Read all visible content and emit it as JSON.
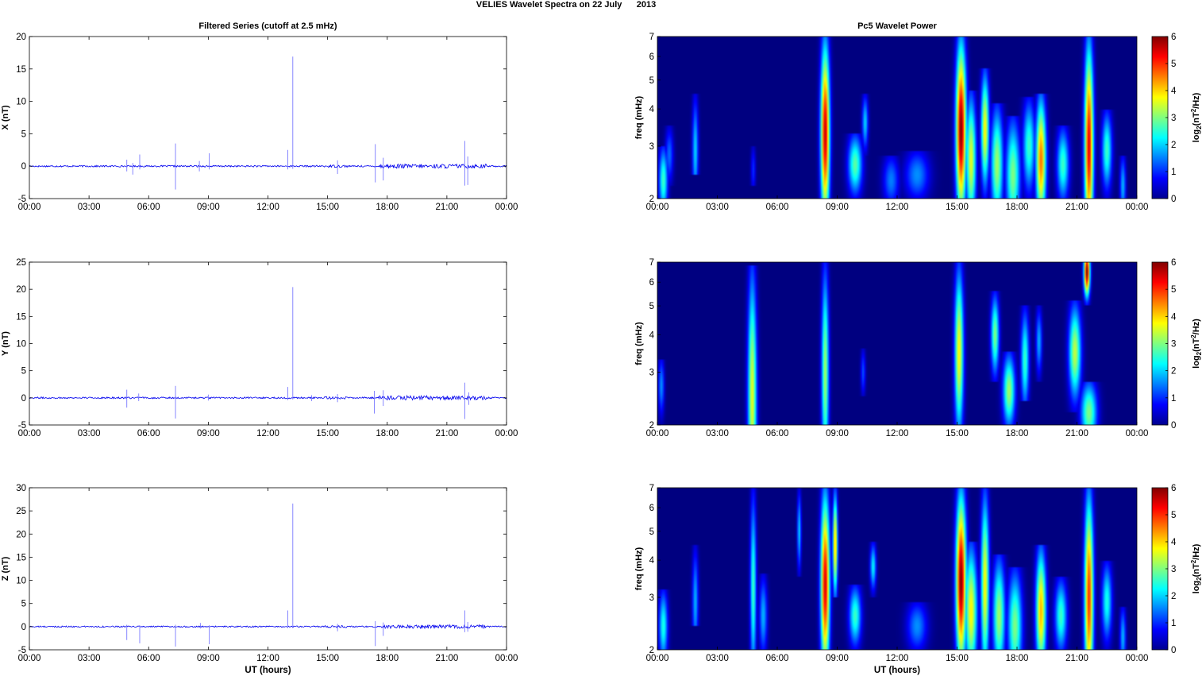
{
  "figure": {
    "title": "VELIES Wavelet Spectra on 22 July      2013",
    "colors": {
      "trace": "#0000ee",
      "background": "#ffffff",
      "axis": "#000000",
      "spectrum_floor": "#00008f"
    }
  },
  "chart_data": [
    {
      "id": "x-series",
      "type": "line",
      "title": "Filtered Series (cutoff at 2.5 mHz)",
      "xlabel": "",
      "ylabel": "X (nT)",
      "xlim": [
        0,
        24
      ],
      "ylim": [
        -5,
        20
      ],
      "xticks": [
        "00:00",
        "03:00",
        "06:00",
        "09:00",
        "12:00",
        "15:00",
        "18:00",
        "21:00",
        "00:00"
      ],
      "yticks": [
        "-5",
        "0",
        "5",
        "10",
        "15",
        "20"
      ],
      "baseline_noise_nT": 0.25,
      "spikes": [
        {
          "t": 4.9,
          "lo": -0.8,
          "hi": 1.0
        },
        {
          "t": 5.2,
          "lo": -1.3,
          "hi": 0.5
        },
        {
          "t": 5.55,
          "lo": -0.5,
          "hi": 1.8
        },
        {
          "t": 7.35,
          "lo": -3.6,
          "hi": 3.5
        },
        {
          "t": 8.55,
          "lo": -0.8,
          "hi": 0.8
        },
        {
          "t": 9.05,
          "lo": -0.5,
          "hi": 2.0
        },
        {
          "t": 13.0,
          "lo": -0.5,
          "hi": 2.5
        },
        {
          "t": 13.25,
          "lo": -0.4,
          "hi": 16.9
        },
        {
          "t": 15.5,
          "lo": -1.2,
          "hi": 0.9
        },
        {
          "t": 17.4,
          "lo": -2.5,
          "hi": 3.4
        },
        {
          "t": 17.8,
          "lo": -2.2,
          "hi": 1.3
        },
        {
          "t": 21.9,
          "lo": -3.0,
          "hi": 3.9
        },
        {
          "t": 22.05,
          "lo": -2.9,
          "hi": 1.5
        }
      ]
    },
    {
      "id": "y-series",
      "type": "line",
      "title": "",
      "xlabel": "",
      "ylabel": "Y (nT)",
      "xlim": [
        0,
        24
      ],
      "ylim": [
        -5,
        25
      ],
      "xticks": [
        "00:00",
        "03:00",
        "06:00",
        "09:00",
        "12:00",
        "15:00",
        "18:00",
        "21:00",
        "00:00"
      ],
      "yticks": [
        "-5",
        "0",
        "5",
        "10",
        "15",
        "20",
        "25"
      ],
      "baseline_noise_nT": 0.3,
      "spikes": [
        {
          "t": 4.9,
          "lo": -1.8,
          "hi": 1.5
        },
        {
          "t": 5.5,
          "lo": -0.6,
          "hi": 0.8
        },
        {
          "t": 7.35,
          "lo": -3.8,
          "hi": 2.2
        },
        {
          "t": 9.0,
          "lo": -0.5,
          "hi": 0.6
        },
        {
          "t": 13.0,
          "lo": -0.4,
          "hi": 2.0
        },
        {
          "t": 13.25,
          "lo": -0.3,
          "hi": 20.4
        },
        {
          "t": 14.2,
          "lo": -0.6,
          "hi": 0.5
        },
        {
          "t": 15.5,
          "lo": -0.8,
          "hi": 0.7
        },
        {
          "t": 17.35,
          "lo": -2.9,
          "hi": 1.3
        },
        {
          "t": 17.8,
          "lo": -1.5,
          "hi": 1.4
        },
        {
          "t": 21.9,
          "lo": -3.9,
          "hi": 2.8
        },
        {
          "t": 22.1,
          "lo": -1.3,
          "hi": 1.0
        }
      ]
    },
    {
      "id": "z-series",
      "type": "line",
      "title": "",
      "xlabel": "UT (hours)",
      "ylabel": "Z (nT)",
      "xlim": [
        0,
        24
      ],
      "ylim": [
        -5,
        30
      ],
      "xticks": [
        "00:00",
        "03:00",
        "06:00",
        "09:00",
        "12:00",
        "15:00",
        "18:00",
        "21:00",
        "00:00"
      ],
      "yticks": [
        "-5",
        "0",
        "5",
        "10",
        "15",
        "20",
        "25",
        "30"
      ],
      "baseline_noise_nT": 0.3,
      "spikes": [
        {
          "t": 4.9,
          "lo": -2.9,
          "hi": 0.4
        },
        {
          "t": 5.55,
          "lo": -3.6,
          "hi": 0.3
        },
        {
          "t": 7.35,
          "lo": -4.3,
          "hi": 0.4
        },
        {
          "t": 8.6,
          "lo": -0.4,
          "hi": 0.8
        },
        {
          "t": 9.05,
          "lo": -3.8,
          "hi": 0.3
        },
        {
          "t": 13.0,
          "lo": -0.3,
          "hi": 3.5
        },
        {
          "t": 13.25,
          "lo": -0.3,
          "hi": 26.6
        },
        {
          "t": 15.5,
          "lo": -1.0,
          "hi": 0.6
        },
        {
          "t": 17.4,
          "lo": -4.2,
          "hi": 1.2
        },
        {
          "t": 17.8,
          "lo": -2.0,
          "hi": 0.9
        },
        {
          "t": 21.9,
          "lo": -1.2,
          "hi": 3.5
        },
        {
          "t": 22.05,
          "lo": -1.1,
          "hi": 1.0
        }
      ]
    },
    {
      "id": "x-wavelet",
      "type": "heatmap",
      "title": "Pc5 Wavelet Power",
      "xlabel": "",
      "ylabel": "freq (mHz)",
      "xlim": [
        0,
        24
      ],
      "ylim": [
        2,
        7
      ],
      "yscale": "log",
      "xticks": [
        "00:00",
        "03:00",
        "06:00",
        "09:00",
        "12:00",
        "15:00",
        "18:00",
        "21:00",
        "00:00"
      ],
      "yticks": [
        "2",
        "3",
        "4",
        "5",
        "6",
        "7"
      ],
      "colorbar": {
        "label": "log",
        "sub": "2",
        "unit": "(nT",
        "sup": "2",
        "unit2": "/Hz)",
        "ticks": [
          "0",
          "1",
          "2",
          "3",
          "4",
          "5",
          "6"
        ],
        "range": [
          0,
          6
        ]
      },
      "blobs": [
        {
          "t": 0.3,
          "f": 2.3,
          "p": 2.6,
          "w": 0.22,
          "fmin": 2.0,
          "fmax": 3.0
        },
        {
          "t": 0.6,
          "f": 2.8,
          "p": 1.4,
          "w": 0.2,
          "fmin": 2.2,
          "fmax": 3.5
        },
        {
          "t": 1.9,
          "f": 2.9,
          "p": 2.0,
          "w": 0.15,
          "fmin": 2.4,
          "fmax": 4.5
        },
        {
          "t": 4.8,
          "f": 2.5,
          "p": 1.0,
          "w": 0.12,
          "fmin": 2.2,
          "fmax": 3.0
        },
        {
          "t": 8.4,
          "f": 3.3,
          "p": 5.6,
          "w": 0.22,
          "fmin": 2.0,
          "fmax": 7.0
        },
        {
          "t": 9.9,
          "f": 2.6,
          "p": 2.8,
          "w": 0.35,
          "fmin": 2.0,
          "fmax": 3.3
        },
        {
          "t": 10.4,
          "f": 3.6,
          "p": 2.0,
          "w": 0.15,
          "fmin": 2.8,
          "fmax": 4.5
        },
        {
          "t": 11.7,
          "f": 2.3,
          "p": 1.5,
          "w": 0.4,
          "fmin": 2.0,
          "fmax": 2.8
        },
        {
          "t": 13.0,
          "f": 2.4,
          "p": 1.6,
          "w": 0.6,
          "fmin": 2.0,
          "fmax": 2.9
        },
        {
          "t": 15.2,
          "f": 3.4,
          "p": 6.0,
          "w": 0.25,
          "fmin": 2.0,
          "fmax": 7.0
        },
        {
          "t": 15.7,
          "f": 2.7,
          "p": 3.6,
          "w": 0.25,
          "fmin": 2.0,
          "fmax": 4.6
        },
        {
          "t": 16.4,
          "f": 3.4,
          "p": 3.8,
          "w": 0.2,
          "fmin": 2.0,
          "fmax": 5.5
        },
        {
          "t": 17.0,
          "f": 2.6,
          "p": 3.2,
          "w": 0.3,
          "fmin": 2.0,
          "fmax": 4.2
        },
        {
          "t": 17.8,
          "f": 2.4,
          "p": 3.0,
          "w": 0.35,
          "fmin": 2.0,
          "fmax": 3.8
        },
        {
          "t": 18.6,
          "f": 3.0,
          "p": 2.6,
          "w": 0.3,
          "fmin": 2.0,
          "fmax": 4.4
        },
        {
          "t": 19.2,
          "f": 2.7,
          "p": 4.6,
          "w": 0.25,
          "fmin": 2.0,
          "fmax": 4.5
        },
        {
          "t": 20.3,
          "f": 2.6,
          "p": 2.6,
          "w": 0.3,
          "fmin": 2.0,
          "fmax": 3.5
        },
        {
          "t": 21.6,
          "f": 3.0,
          "p": 5.4,
          "w": 0.22,
          "fmin": 2.0,
          "fmax": 7.0
        },
        {
          "t": 22.5,
          "f": 2.9,
          "p": 2.6,
          "w": 0.25,
          "fmin": 2.0,
          "fmax": 4.0
        },
        {
          "t": 23.3,
          "f": 2.2,
          "p": 1.8,
          "w": 0.15,
          "fmin": 2.0,
          "fmax": 2.8
        }
      ]
    },
    {
      "id": "y-wavelet",
      "type": "heatmap",
      "title": "",
      "xlabel": "",
      "ylabel": "freq (mHz)",
      "xlim": [
        0,
        24
      ],
      "ylim": [
        2,
        7
      ],
      "yscale": "log",
      "xticks": [
        "00:00",
        "03:00",
        "06:00",
        "09:00",
        "12:00",
        "15:00",
        "18:00",
        "21:00",
        "00:00"
      ],
      "yticks": [
        "2",
        "3",
        "4",
        "5",
        "6",
        "7"
      ],
      "colorbar": {
        "label": "log",
        "sub": "2",
        "unit": "(nT",
        "sup": "2",
        "unit2": "/Hz)",
        "ticks": [
          "0",
          "1",
          "2",
          "3",
          "4",
          "5",
          "6"
        ],
        "range": [
          0,
          6
        ]
      },
      "blobs": [
        {
          "t": 0.2,
          "f": 2.7,
          "p": 1.6,
          "w": 0.15,
          "fmin": 2.0,
          "fmax": 3.3
        },
        {
          "t": 4.75,
          "f": 2.5,
          "p": 3.6,
          "w": 0.22,
          "fmin": 2.0,
          "fmax": 6.8
        },
        {
          "t": 8.4,
          "f": 3.0,
          "p": 3.2,
          "w": 0.18,
          "fmin": 2.0,
          "fmax": 7.0
        },
        {
          "t": 10.3,
          "f": 3.0,
          "p": 1.2,
          "w": 0.12,
          "fmin": 2.5,
          "fmax": 3.6
        },
        {
          "t": 15.1,
          "f": 3.5,
          "p": 3.8,
          "w": 0.22,
          "fmin": 2.0,
          "fmax": 7.0
        },
        {
          "t": 16.9,
          "f": 4.0,
          "p": 3.0,
          "w": 0.2,
          "fmin": 2.8,
          "fmax": 5.6
        },
        {
          "t": 17.6,
          "f": 2.6,
          "p": 3.2,
          "w": 0.3,
          "fmin": 2.0,
          "fmax": 3.5
        },
        {
          "t": 18.4,
          "f": 3.3,
          "p": 2.6,
          "w": 0.2,
          "fmin": 2.4,
          "fmax": 5.0
        },
        {
          "t": 19.1,
          "f": 3.8,
          "p": 1.8,
          "w": 0.15,
          "fmin": 2.8,
          "fmax": 5.0
        },
        {
          "t": 20.9,
          "f": 3.5,
          "p": 3.4,
          "w": 0.3,
          "fmin": 2.2,
          "fmax": 5.2
        },
        {
          "t": 21.6,
          "f": 2.2,
          "p": 3.0,
          "w": 0.4,
          "fmin": 2.0,
          "fmax": 2.8
        },
        {
          "t": 21.5,
          "f": 6.5,
          "p": 6.0,
          "w": 0.15,
          "fmin": 5.0,
          "fmax": 7.0
        }
      ]
    },
    {
      "id": "z-wavelet",
      "type": "heatmap",
      "title": "",
      "xlabel": "UT (hours)",
      "ylabel": "freq (mHz)",
      "xlim": [
        0,
        24
      ],
      "ylim": [
        2,
        7
      ],
      "yscale": "log",
      "xticks": [
        "00:00",
        "03:00",
        "06:00",
        "09:00",
        "12:00",
        "15:00",
        "18:00",
        "21:00",
        "00:00"
      ],
      "yticks": [
        "2",
        "3",
        "4",
        "5",
        "6",
        "7"
      ],
      "colorbar": {
        "label": "log",
        "sub": "2",
        "unit": "(nT",
        "sup": "2",
        "unit2": "/Hz)",
        "ticks": [
          "0",
          "1",
          "2",
          "3",
          "4",
          "5",
          "6"
        ],
        "range": [
          0,
          6
        ]
      },
      "blobs": [
        {
          "t": 0.3,
          "f": 2.4,
          "p": 2.4,
          "w": 0.22,
          "fmin": 2.0,
          "fmax": 3.2
        },
        {
          "t": 1.9,
          "f": 2.9,
          "p": 1.8,
          "w": 0.15,
          "fmin": 2.4,
          "fmax": 4.5
        },
        {
          "t": 4.8,
          "f": 3.2,
          "p": 2.6,
          "w": 0.15,
          "fmin": 2.0,
          "fmax": 7.0
        },
        {
          "t": 5.3,
          "f": 2.6,
          "p": 1.8,
          "w": 0.2,
          "fmin": 2.0,
          "fmax": 3.6
        },
        {
          "t": 7.1,
          "f": 5.0,
          "p": 2.0,
          "w": 0.1,
          "fmin": 3.5,
          "fmax": 7.0
        },
        {
          "t": 8.4,
          "f": 3.3,
          "p": 5.5,
          "w": 0.22,
          "fmin": 2.0,
          "fmax": 7.0
        },
        {
          "t": 8.9,
          "f": 4.5,
          "p": 4.2,
          "w": 0.12,
          "fmin": 3.0,
          "fmax": 7.0
        },
        {
          "t": 9.9,
          "f": 2.6,
          "p": 2.6,
          "w": 0.3,
          "fmin": 2.0,
          "fmax": 3.3
        },
        {
          "t": 10.8,
          "f": 3.8,
          "p": 2.2,
          "w": 0.15,
          "fmin": 3.0,
          "fmax": 4.6
        },
        {
          "t": 13.0,
          "f": 2.4,
          "p": 1.6,
          "w": 0.5,
          "fmin": 2.0,
          "fmax": 2.9
        },
        {
          "t": 15.2,
          "f": 3.4,
          "p": 6.0,
          "w": 0.25,
          "fmin": 2.0,
          "fmax": 7.0
        },
        {
          "t": 15.7,
          "f": 2.7,
          "p": 3.8,
          "w": 0.3,
          "fmin": 2.0,
          "fmax": 4.6
        },
        {
          "t": 16.4,
          "f": 3.3,
          "p": 3.8,
          "w": 0.2,
          "fmin": 2.0,
          "fmax": 7.0
        },
        {
          "t": 17.1,
          "f": 2.6,
          "p": 3.2,
          "w": 0.3,
          "fmin": 2.0,
          "fmax": 4.2
        },
        {
          "t": 17.9,
          "f": 2.4,
          "p": 3.0,
          "w": 0.35,
          "fmin": 2.0,
          "fmax": 3.8
        },
        {
          "t": 19.2,
          "f": 2.7,
          "p": 4.2,
          "w": 0.25,
          "fmin": 2.0,
          "fmax": 4.5
        },
        {
          "t": 20.2,
          "f": 2.6,
          "p": 2.6,
          "w": 0.3,
          "fmin": 2.0,
          "fmax": 3.5
        },
        {
          "t": 21.6,
          "f": 3.0,
          "p": 5.0,
          "w": 0.22,
          "fmin": 2.0,
          "fmax": 7.0
        },
        {
          "t": 22.5,
          "f": 2.9,
          "p": 2.4,
          "w": 0.25,
          "fmin": 2.0,
          "fmax": 4.0
        },
        {
          "t": 23.3,
          "f": 2.2,
          "p": 1.8,
          "w": 0.15,
          "fmin": 2.0,
          "fmax": 2.8
        }
      ]
    }
  ]
}
